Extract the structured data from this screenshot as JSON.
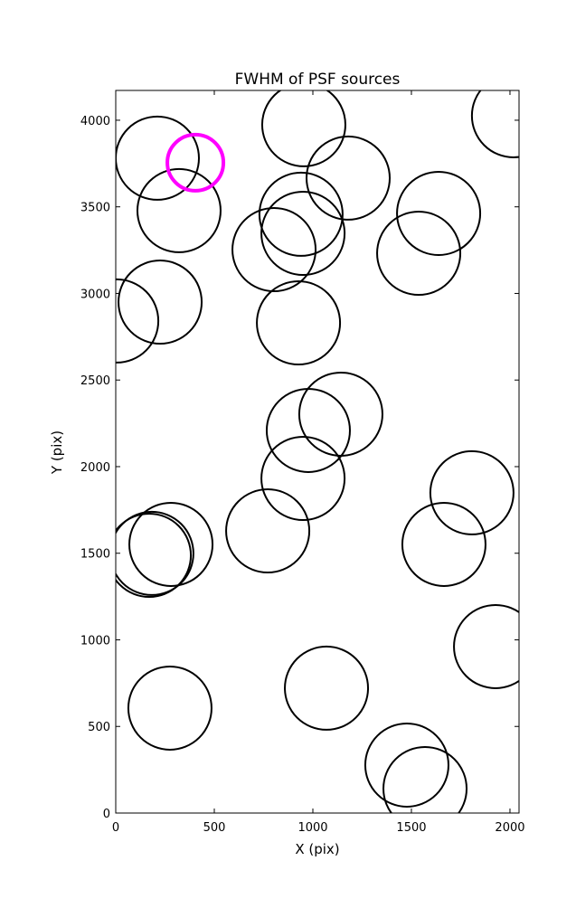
{
  "chart_data": {
    "type": "scatter",
    "title": "FWHM of PSF sources",
    "x_label": "X (pix)",
    "y_label": "Y (pix)",
    "xlim": [
      0,
      2046
    ],
    "ylim": [
      0,
      4172
    ],
    "xticks": [
      0,
      500,
      1000,
      1500,
      2000
    ],
    "yticks": [
      0,
      500,
      1000,
      1500,
      2000,
      2500,
      3000,
      3500,
      4000
    ],
    "series": [
      {
        "color": "#000000",
        "x": [
          211,
          954,
          1179,
          2018,
          321,
          803,
          940,
          950,
          1638,
          1537,
          225,
          5,
          927,
          1142,
          977,
          950,
          771,
          1807,
          1665,
          280,
          183,
          170,
          1927,
          1069,
          275,
          1477,
          1569
        ],
        "values": [
          3781,
          3974,
          3666,
          4026,
          3478,
          3253,
          3457,
          3347,
          3462,
          3232,
          2950,
          2841,
          2830,
          2303,
          2209,
          1932,
          1629,
          1849,
          1551,
          1551,
          1499,
          1488,
          961,
          721,
          606,
          277,
          141
        ]
      },
      {
        "color": "#ff00ff",
        "x": [
          404
        ],
        "values": [
          3755
        ]
      }
    ]
  }
}
